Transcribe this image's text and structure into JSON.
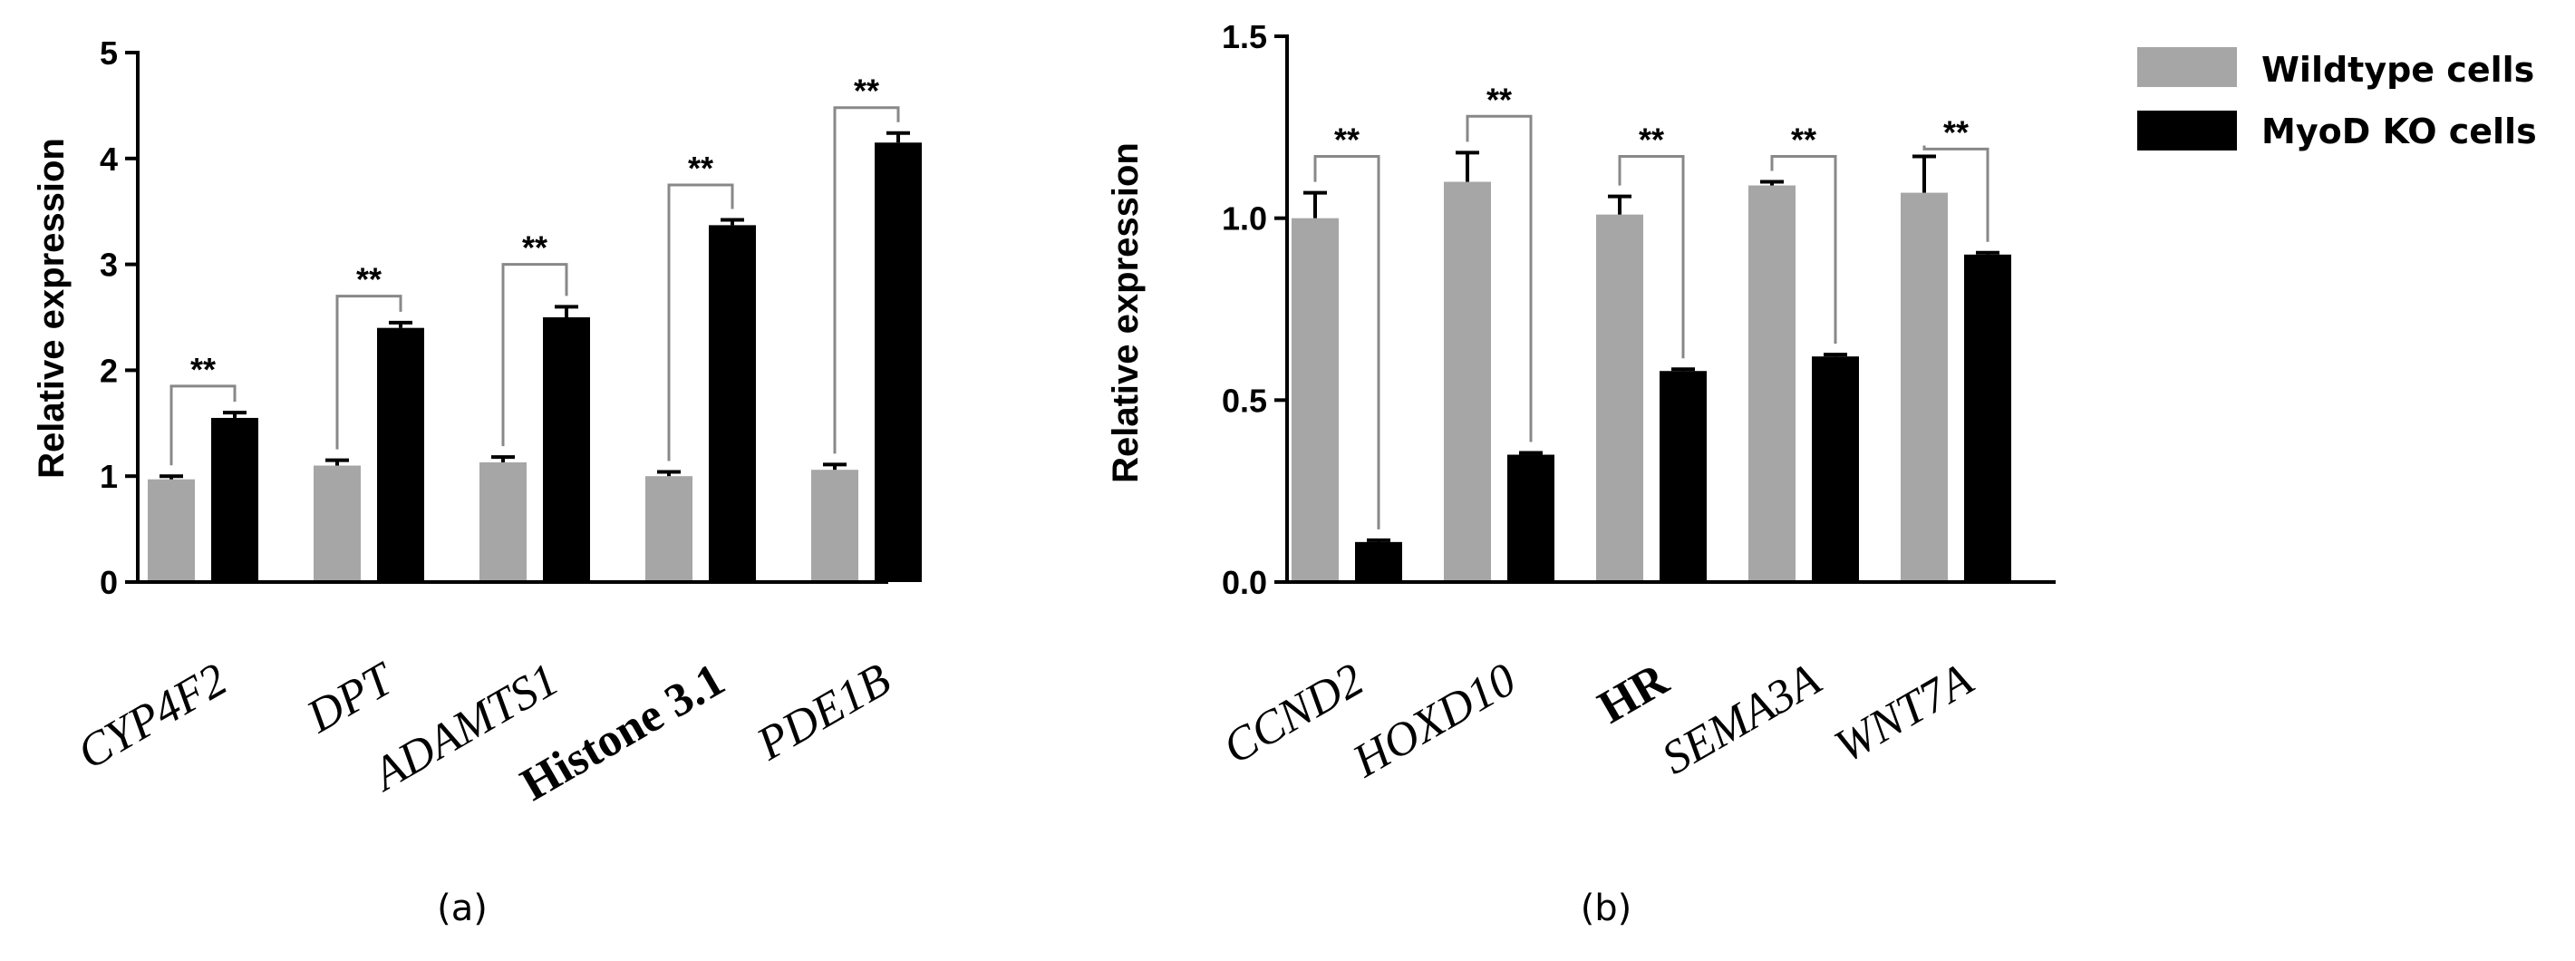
{
  "chart_data": [
    {
      "id": "a",
      "type": "bar",
      "panel_label": "(a)",
      "ylabel": "Relative expression",
      "ylim": [
        0,
        5
      ],
      "yticks": [
        {
          "value": 0,
          "label": "0"
        },
        {
          "value": 1,
          "label": "1"
        },
        {
          "value": 2,
          "label": "2"
        },
        {
          "value": 3,
          "label": "3"
        },
        {
          "value": 4,
          "label": "4"
        },
        {
          "value": 5,
          "label": "5"
        }
      ],
      "categories": [
        "CYP4F2",
        "DPT",
        "ADAMTS1",
        "Histone 3.1",
        "PDE1B"
      ],
      "category_styles": [
        "italic",
        "italic",
        "italic",
        "bold",
        "italic"
      ],
      "series": [
        {
          "name": "Wildtype cells",
          "color": "#a6a6a6",
          "values": [
            0.97,
            1.1,
            1.13,
            1.0,
            1.06
          ],
          "errors": [
            0.03,
            0.05,
            0.05,
            0.04,
            0.05
          ]
        },
        {
          "name": "MyoD KO cells",
          "color": "#000000",
          "values": [
            1.55,
            2.4,
            2.5,
            3.37,
            4.15
          ],
          "errors": [
            0.05,
            0.05,
            0.1,
            0.05,
            0.09
          ]
        }
      ],
      "significance": [
        "**",
        "**",
        "**",
        "**",
        "**"
      ],
      "bracket_heights": [
        1.85,
        2.7,
        3.0,
        3.75,
        4.48
      ]
    },
    {
      "id": "b",
      "type": "bar",
      "panel_label": "(b)",
      "ylabel": "Relative expression",
      "ylim": [
        0,
        1.5
      ],
      "yticks": [
        {
          "value": 0,
          "label": "0.0"
        },
        {
          "value": 0.5,
          "label": "0.5"
        },
        {
          "value": 1.0,
          "label": "1.0"
        },
        {
          "value": 1.5,
          "label": "1.5"
        }
      ],
      "categories": [
        "CCND2",
        "HOXD10",
        "HR",
        "SEMA3A",
        "WNT7A"
      ],
      "category_styles": [
        "italic",
        "italic",
        "bold",
        "italic",
        "italic"
      ],
      "series": [
        {
          "name": "Wildtype cells",
          "color": "#a6a6a6",
          "values": [
            1.0,
            1.1,
            1.01,
            1.09,
            1.07
          ],
          "errors": [
            0.07,
            0.08,
            0.05,
            0.01,
            0.1
          ]
        },
        {
          "name": "MyoD KO cells",
          "color": "#000000",
          "values": [
            0.11,
            0.35,
            0.58,
            0.62,
            0.9
          ],
          "errors": [
            0.005,
            0.005,
            0.005,
            0.005,
            0.005
          ]
        }
      ],
      "significance": [
        "**",
        "**",
        "**",
        "**",
        "**"
      ],
      "bracket_heights": [
        1.17,
        1.28,
        1.17,
        1.17,
        1.19
      ]
    }
  ],
  "legend": [
    {
      "label": "Wildtype cells",
      "color": "#a6a6a6"
    },
    {
      "label": "MyoD KO cells",
      "color": "#000000"
    }
  ]
}
